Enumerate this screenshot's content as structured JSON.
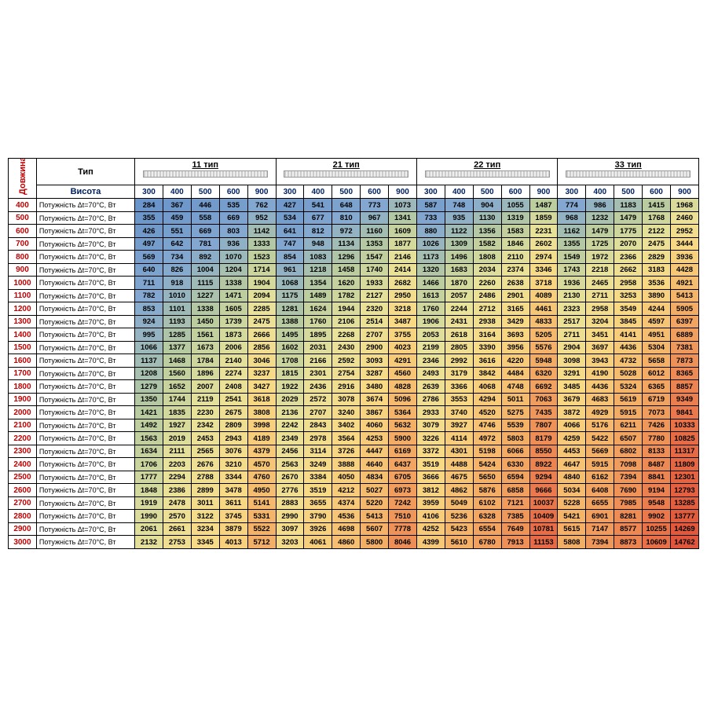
{
  "labels": {
    "length": "Довжина",
    "type": "Тип",
    "height": "Висота"
  },
  "row_desc": "Потужність Δt=70°C, Вт",
  "type_headers": [
    "11 тип",
    "21 тип",
    "22 тип",
    "33 тип"
  ],
  "heights": [
    300,
    400,
    500,
    600,
    900
  ],
  "lengths": [
    400,
    500,
    600,
    700,
    800,
    900,
    1000,
    1100,
    1200,
    1300,
    1400,
    1500,
    1600,
    1700,
    1800,
    1900,
    2000,
    2100,
    2200,
    2300,
    2400,
    2500,
    2600,
    2700,
    2800,
    2900,
    3000
  ],
  "data": {
    "t11": {
      "300": [
        284,
        355,
        426,
        497,
        569,
        640,
        711,
        782,
        853,
        924,
        995,
        1066,
        1137,
        1208,
        1279,
        1350,
        1421,
        1492,
        1563,
        1634,
        1706,
        1777,
        1848,
        1919,
        1990,
        2061,
        2132
      ],
      "400": [
        367,
        459,
        551,
        642,
        734,
        826,
        918,
        1010,
        1101,
        1193,
        1285,
        1377,
        1468,
        1560,
        1652,
        1744,
        1835,
        1927,
        2019,
        2111,
        2203,
        2294,
        2386,
        2478,
        2570,
        2661,
        2753
      ],
      "500": [
        446,
        558,
        669,
        781,
        892,
        1004,
        1115,
        1227,
        1338,
        1450,
        1561,
        1673,
        1784,
        1896,
        2007,
        2119,
        2230,
        2342,
        2453,
        2565,
        2676,
        2788,
        2899,
        3011,
        3122,
        3234,
        3345
      ],
      "600": [
        535,
        669,
        803,
        936,
        1070,
        1204,
        1338,
        1471,
        1605,
        1739,
        1873,
        2006,
        2140,
        2274,
        2408,
        2541,
        2675,
        2809,
        2943,
        3076,
        3210,
        3344,
        3478,
        3611,
        3745,
        3879,
        4013
      ],
      "900": [
        762,
        952,
        1142,
        1333,
        1523,
        1714,
        1904,
        2094,
        2285,
        2475,
        2666,
        2856,
        3046,
        3237,
        3427,
        3618,
        3808,
        3998,
        4189,
        4379,
        4570,
        4760,
        4950,
        5141,
        5331,
        5522,
        5712
      ]
    },
    "t21": {
      "300": [
        427,
        534,
        641,
        747,
        854,
        961,
        1068,
        1175,
        1281,
        1388,
        1495,
        1602,
        1708,
        1815,
        1922,
        2029,
        2136,
        2242,
        2349,
        2456,
        2563,
        2670,
        2776,
        2883,
        2990,
        3097,
        3203
      ],
      "400": [
        541,
        677,
        812,
        948,
        1083,
        1218,
        1354,
        1489,
        1624,
        1760,
        1895,
        2031,
        2166,
        2301,
        2436,
        2572,
        2707,
        2843,
        2978,
        3114,
        3249,
        3384,
        3519,
        3655,
        3790,
        3926,
        4061
      ],
      "500": [
        648,
        810,
        972,
        1134,
        1296,
        1458,
        1620,
        1782,
        1944,
        2106,
        2268,
        2430,
        2592,
        2754,
        2916,
        3078,
        3240,
        3402,
        3564,
        3726,
        3888,
        4050,
        4212,
        4374,
        4536,
        4698,
        4860
      ],
      "600": [
        773,
        967,
        1160,
        1353,
        1547,
        1740,
        1933,
        2127,
        2320,
        2514,
        2707,
        2900,
        3093,
        3287,
        3480,
        3674,
        3867,
        4060,
        4253,
        4447,
        4640,
        4834,
        5027,
        5220,
        5413,
        5607,
        5800
      ],
      "900": [
        1073,
        1341,
        1609,
        1877,
        2146,
        2414,
        2682,
        2950,
        3218,
        3487,
        3755,
        4023,
        4291,
        4560,
        4828,
        5096,
        5364,
        5632,
        5900,
        6169,
        6437,
        6705,
        6973,
        7242,
        7510,
        7778,
        8046
      ]
    },
    "t22": {
      "300": [
        587,
        733,
        880,
        1026,
        1173,
        1320,
        1466,
        1613,
        1760,
        1906,
        2053,
        2199,
        2346,
        2493,
        2639,
        2786,
        2933,
        3079,
        3226,
        3372,
        3519,
        3666,
        3812,
        3959,
        4106,
        4252,
        4399
      ],
      "400": [
        748,
        935,
        1122,
        1309,
        1496,
        1683,
        1870,
        2057,
        2244,
        2431,
        2618,
        2805,
        2992,
        3179,
        3366,
        3553,
        3740,
        3927,
        4114,
        4301,
        4488,
        4675,
        4862,
        5049,
        5236,
        5423,
        5610
      ],
      "500": [
        904,
        1130,
        1356,
        1582,
        1808,
        2034,
        2260,
        2486,
        2712,
        2938,
        3164,
        3390,
        3616,
        3842,
        4068,
        4294,
        4520,
        4746,
        4972,
        5198,
        5424,
        5650,
        5876,
        6102,
        6328,
        6554,
        6780
      ],
      "600": [
        1055,
        1319,
        1583,
        1846,
        2110,
        2374,
        2638,
        2901,
        3165,
        3429,
        3693,
        3956,
        4220,
        4484,
        4748,
        5011,
        5275,
        5539,
        5803,
        6066,
        6330,
        6594,
        6858,
        7121,
        7385,
        7649,
        7913
      ],
      "900": [
        1487,
        1859,
        2231,
        2602,
        2974,
        3346,
        3718,
        4089,
        4461,
        4833,
        5205,
        5576,
        5948,
        6320,
        6692,
        7063,
        7435,
        7807,
        8179,
        8550,
        8922,
        9294,
        9666,
        10037,
        10409,
        10781,
        11153
      ]
    },
    "t33": {
      "300": [
        774,
        968,
        1162,
        1355,
        1549,
        1743,
        1936,
        2130,
        2323,
        2517,
        2711,
        2904,
        3098,
        3291,
        3485,
        3679,
        3872,
        4066,
        4259,
        4453,
        4647,
        4840,
        5034,
        5228,
        5421,
        5615,
        5808
      ],
      "400": [
        986,
        1232,
        1479,
        1725,
        1972,
        2218,
        2465,
        2711,
        2958,
        3204,
        3451,
        3697,
        3943,
        4190,
        4436,
        4683,
        4929,
        5176,
        5422,
        5669,
        5915,
        6162,
        6408,
        6655,
        6901,
        7147,
        7394
      ],
      "500": [
        1183,
        1479,
        1775,
        2070,
        2366,
        2662,
        2958,
        3253,
        3549,
        3845,
        4141,
        4436,
        4732,
        5028,
        5324,
        5619,
        5915,
        6211,
        6507,
        6802,
        7098,
        7394,
        7690,
        7985,
        8281,
        8577,
        8873
      ],
      "600": [
        1415,
        1768,
        2122,
        2475,
        2829,
        3183,
        3536,
        3890,
        4244,
        4597,
        4951,
        5304,
        5658,
        6012,
        6365,
        6719,
        7073,
        7426,
        7780,
        8133,
        8487,
        8841,
        9194,
        9548,
        9902,
        10255,
        10609
      ],
      "900": [
        1968,
        2460,
        2952,
        3444,
        3936,
        4428,
        4921,
        5413,
        5905,
        6397,
        6889,
        7381,
        7873,
        8365,
        8857,
        9349,
        9841,
        10333,
        10825,
        11317,
        11809,
        12301,
        12793,
        13285,
        13777,
        14269,
        14762
      ]
    }
  },
  "style": {
    "length_color": "#c00000",
    "height_color": "#002060",
    "border_color": "#000000",
    "font_family": "Arial",
    "base_font_size": 9.5
  },
  "heatmap": {
    "stops": [
      {
        "v": 0,
        "c": "#5b8ac6"
      },
      {
        "v": 800,
        "c": "#84a8d0"
      },
      {
        "v": 1400,
        "c": "#b8cb9f"
      },
      {
        "v": 2200,
        "c": "#e8e29a"
      },
      {
        "v": 3500,
        "c": "#f8d984"
      },
      {
        "v": 5500,
        "c": "#f4b268"
      },
      {
        "v": 8000,
        "c": "#ee8f57"
      },
      {
        "v": 11000,
        "c": "#e76a45"
      },
      {
        "v": 15000,
        "c": "#e0543a"
      }
    ]
  }
}
